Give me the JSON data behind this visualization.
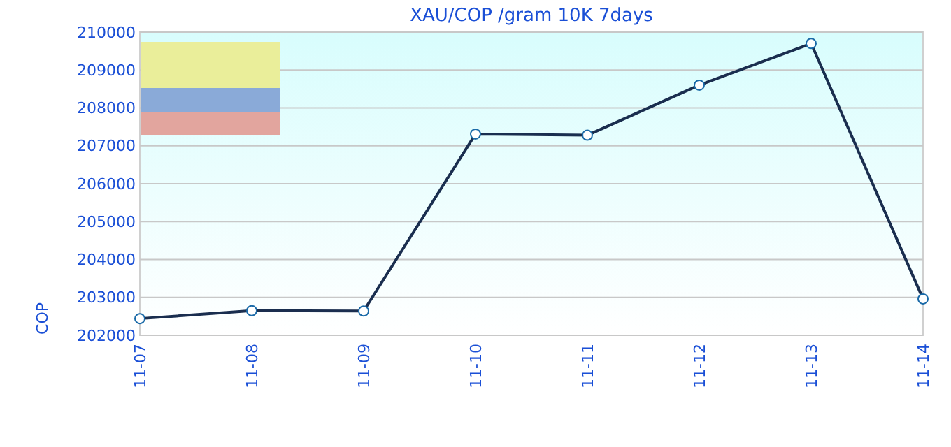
{
  "chart_data": {
    "type": "line",
    "title": "XAU/COP /gram 10K 7days",
    "ylabel": "COP",
    "categories": [
      "11-07",
      "11-08",
      "11-09",
      "11-10",
      "11-11",
      "11-12",
      "11-13",
      "11-14"
    ],
    "values": [
      202440,
      202650,
      202640,
      207310,
      207280,
      208600,
      209700,
      202960
    ],
    "color": "#1a2e4f",
    "marker": "circle",
    "line_style": "solid",
    "grid": "y",
    "ylim": [
      202000,
      210000
    ],
    "yticks": [
      202000,
      203000,
      204000,
      205000,
      206000,
      207000,
      208000,
      209000,
      210000
    ]
  }
}
